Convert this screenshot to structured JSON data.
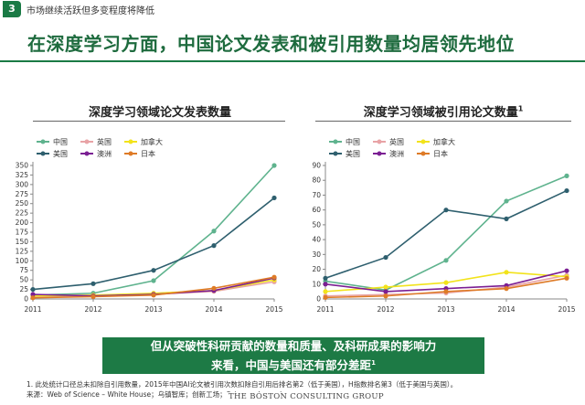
{
  "page": {
    "number": "3",
    "topic": "市场继续活跃但多变程度将降低",
    "headline": "在深度学习方面，中国论文发表和被引用数量均居领先地位",
    "callout_line1": "但从突破性科研贡献的数量和质量、及科研成果的影响力",
    "callout_line2": "来看，中国与美国还有部分差距",
    "callout_sup": "1",
    "footnote1": "1. 此处统计口径总未扣除自引用数量，2015年中国AI论文被引用次数扣除自引用后排名第2（低于美国），H指数排名第3（低于美国与英国）。",
    "footnote2": "来源：Web of Science – White House；乌镇智库；创新工场；Scimago Journal",
    "logo": "THE BOSTON CONSULTING GROUP"
  },
  "chart_data": [
    {
      "type": "line",
      "title": "深度学习领域论文发表数量",
      "title_sup": "",
      "x": [
        "2011",
        "2012",
        "2013",
        "2014",
        "2015"
      ],
      "ylim": [
        0,
        350
      ],
      "yticks": [
        0,
        25,
        50,
        75,
        100,
        125,
        150,
        175,
        200,
        225,
        250,
        275,
        300,
        325,
        350
      ],
      "grid": false,
      "legend_position": "top-left",
      "series": [
        {
          "name": "中国",
          "color": "#5fb38e",
          "values": [
            10,
            15,
            48,
            178,
            350
          ]
        },
        {
          "name": "英国",
          "color": "#e8a3a6",
          "values": [
            5,
            8,
            12,
            20,
            45
          ]
        },
        {
          "name": "加拿大",
          "color": "#f2e31b",
          "values": [
            8,
            10,
            15,
            22,
            50
          ]
        },
        {
          "name": "美国",
          "color": "#2e5f6e",
          "values": [
            25,
            40,
            75,
            140,
            265
          ]
        },
        {
          "name": "澳洲",
          "color": "#7b1f93",
          "values": [
            12,
            8,
            12,
            22,
            55
          ]
        },
        {
          "name": "日本",
          "color": "#de7b27",
          "values": [
            3,
            6,
            10,
            28,
            57
          ]
        }
      ]
    },
    {
      "type": "line",
      "title": "深度学习领域被引用论文数量",
      "title_sup": "1",
      "x": [
        "2011",
        "2012",
        "2013",
        "2014",
        "2015"
      ],
      "ylim": [
        0,
        90
      ],
      "yticks": [
        0,
        10,
        20,
        30,
        40,
        50,
        60,
        70,
        80,
        90
      ],
      "grid": false,
      "legend_position": "top-left",
      "series": [
        {
          "name": "中国",
          "color": "#5fb38e",
          "values": [
            12,
            6,
            26,
            66,
            83
          ]
        },
        {
          "name": "英国",
          "color": "#e8a3a6",
          "values": [
            2,
            3,
            4,
            8,
            16
          ]
        },
        {
          "name": "加拿大",
          "color": "#f2e31b",
          "values": [
            5,
            8,
            11,
            18,
            15
          ]
        },
        {
          "name": "美国",
          "color": "#2e5f6e",
          "values": [
            14,
            28,
            60,
            54,
            73
          ]
        },
        {
          "name": "澳洲",
          "color": "#7b1f93",
          "values": [
            10,
            5,
            7,
            9,
            19
          ]
        },
        {
          "name": "日本",
          "color": "#de7b27",
          "values": [
            1,
            2,
            5,
            7,
            14
          ]
        }
      ]
    }
  ]
}
